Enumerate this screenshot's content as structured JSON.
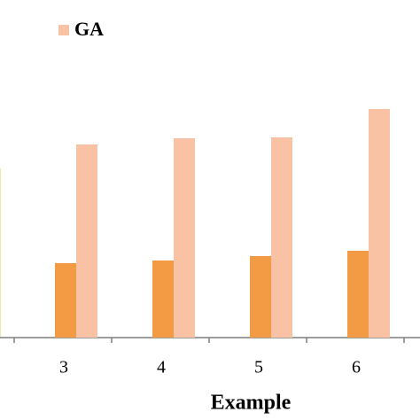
{
  "chart_data": {
    "type": "bar",
    "x_label": "Example",
    "categories": [
      "3",
      "4",
      "5",
      "6"
    ],
    "series": [
      {
        "color": "#f39a45",
        "values": [
          84,
          87,
          92,
          98
        ]
      },
      {
        "name": "GA",
        "color": "#f9c2a5",
        "values": [
          218,
          225,
          226,
          258
        ]
      }
    ],
    "ylim": [
      0,
      300
    ]
  }
}
